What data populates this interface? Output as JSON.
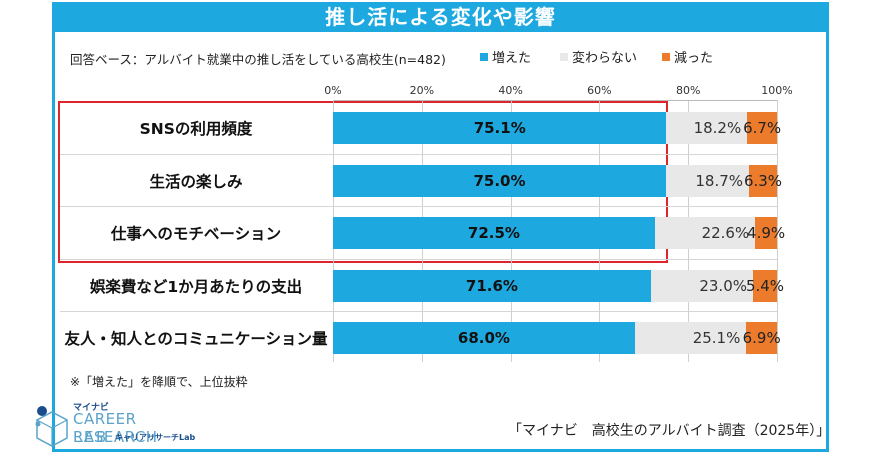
{
  "title": "推し活による変化や影響",
  "subtitle": "回答ベース：アルバイト就業中の推し活をしている高校生(n=482)",
  "colors": {
    "increased": "#1da8e0",
    "unchanged": "#e8e8e8",
    "decreased": "#ec7b2b",
    "highlight": "#e0242b"
  },
  "note": "※「増えた」を降順で、上位抜粋",
  "source": "「マイナビ　高校生のアルバイト調査（2025年）」",
  "logo": {
    "brand": "マイナビ",
    "line1": "CAREER RESEARCH",
    "line2": "LAB",
    "line3": "キャリアリサーチLab"
  },
  "chart_data": {
    "type": "bar",
    "orientation": "horizontal",
    "stacked": true,
    "xlim": [
      0,
      100
    ],
    "ticks": [
      "0%",
      "20%",
      "40%",
      "60%",
      "80%",
      "100%"
    ],
    "categories": [
      "SNSの利用頻度",
      "生活の楽しみ",
      "仕事へのモチベーション",
      "娯楽費など1か月あたりの支出",
      "友人・知人とのコミュニケーション量"
    ],
    "series": [
      {
        "name": "増えた",
        "values": [
          75.1,
          75.0,
          72.5,
          71.6,
          68.0
        ],
        "labels": [
          "75.1%",
          "75.0%",
          "72.5%",
          "71.6%",
          "68.0%"
        ]
      },
      {
        "name": "変わらない",
        "values": [
          18.2,
          18.7,
          22.6,
          23.0,
          25.1
        ],
        "labels": [
          "18.2%",
          "18.7%",
          "22.6%",
          "23.0%",
          "25.1%"
        ]
      },
      {
        "name": "減った",
        "values": [
          6.7,
          6.3,
          4.9,
          5.4,
          6.9
        ],
        "labels": [
          "6.7%",
          "6.3%",
          "4.9%",
          "5.4%",
          "6.9%"
        ]
      }
    ],
    "highlighted_categories": [
      "SNSの利用頻度",
      "生活の楽しみ",
      "仕事へのモチベーション"
    ]
  }
}
